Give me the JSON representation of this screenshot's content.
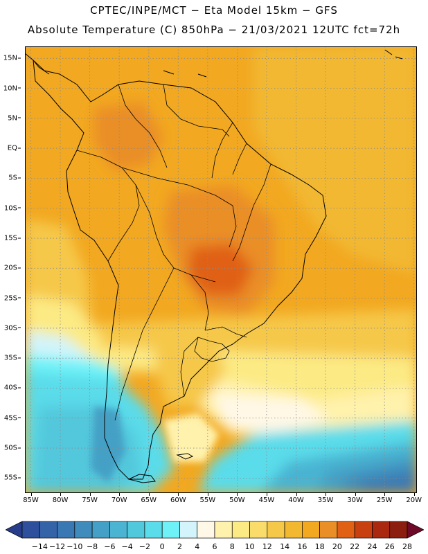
{
  "header": {
    "line1": "CPTEC/INPE/MCT −  Eta Model 15km − GFS",
    "line2": "Absolute Temperature (C) 850hPa − 21/03/2021 12UTC fct=72h"
  },
  "axes": {
    "lat_labels": [
      {
        "text": "15N",
        "value": 15
      },
      {
        "text": "10N",
        "value": 10
      },
      {
        "text": "5N",
        "value": 5
      },
      {
        "text": "EQ",
        "value": 0
      },
      {
        "text": "5S",
        "value": -5
      },
      {
        "text": "10S",
        "value": -10
      },
      {
        "text": "15S",
        "value": -15
      },
      {
        "text": "20S",
        "value": -20
      },
      {
        "text": "25S",
        "value": -25
      },
      {
        "text": "30S",
        "value": -30
      },
      {
        "text": "35S",
        "value": -35
      },
      {
        "text": "40S",
        "value": -40
      },
      {
        "text": "45S",
        "value": -45
      },
      {
        "text": "50S",
        "value": -50
      },
      {
        "text": "55S",
        "value": -55
      }
    ],
    "lon_labels": [
      {
        "text": "85W",
        "value": -85
      },
      {
        "text": "80W",
        "value": -80
      },
      {
        "text": "75W",
        "value": -75
      },
      {
        "text": "70W",
        "value": -70
      },
      {
        "text": "65W",
        "value": -65
      },
      {
        "text": "60W",
        "value": -60
      },
      {
        "text": "55W",
        "value": -55
      },
      {
        "text": "50W",
        "value": -50
      },
      {
        "text": "45W",
        "value": -45
      },
      {
        "text": "40W",
        "value": -40
      },
      {
        "text": "35W",
        "value": -35
      },
      {
        "text": "30W",
        "value": -30
      },
      {
        "text": "25W",
        "value": -25
      },
      {
        "text": "20W",
        "value": -20
      }
    ],
    "lat_range": [
      -57.5,
      17
    ],
    "lon_range": [
      -86,
      -19.5
    ]
  },
  "colorbar": {
    "labels": [
      "−14",
      "−12",
      "−10",
      "−8",
      "−6",
      "−4",
      "−2",
      "0",
      "2",
      "4",
      "6",
      "8",
      "10",
      "12",
      "14",
      "16",
      "18",
      "20",
      "22",
      "24",
      "26",
      "28"
    ],
    "low_color": "#283c8c",
    "high_color": "#6e0a28",
    "colors": [
      "#2d4f9c",
      "#3463a8",
      "#3a78b4",
      "#3f8cbc",
      "#44a0c6",
      "#4ab4d2",
      "#52c8dc",
      "#5adcea",
      "#6ef2f8",
      "#d2f4fa",
      "#fff8e6",
      "#fff2ac",
      "#fcea84",
      "#fadc6a",
      "#f6c84a",
      "#f2b830",
      "#f2a820",
      "#ea8e28",
      "#e06014",
      "#c84010",
      "#aa2810",
      "#8c1e10"
    ]
  },
  "field": {
    "regions": [
      {
        "name": "ocean-north",
        "color": "#f2a820",
        "lon": -60,
        "lat": 5,
        "rx": 30,
        "ry": 10
      },
      {
        "name": "colombia-warm",
        "color": "#ea8e28",
        "lon": -70,
        "lat": 3,
        "rx": 7,
        "ry": 5
      },
      {
        "name": "central-warm",
        "color": "#ea8e28",
        "lon": -51,
        "lat": -18,
        "rx": 9,
        "ry": 8
      },
      {
        "name": "brazil-hot",
        "color": "#e06014",
        "lon": -53,
        "lat": -21,
        "rx": 3,
        "ry": 2
      },
      {
        "name": "pacific-cool",
        "color": "#fadc6a",
        "lon": -84,
        "lat": -26,
        "rx": 4,
        "ry": 6
      },
      {
        "name": "south-atlantic-mild",
        "color": "#fcea84",
        "lon": -45,
        "lat": -40,
        "rx": 10,
        "ry": 8
      },
      {
        "name": "patagonia-cold",
        "color": "#52c8dc",
        "lon": -73,
        "lat": -50,
        "rx": 8,
        "ry": 10
      }
    ]
  }
}
